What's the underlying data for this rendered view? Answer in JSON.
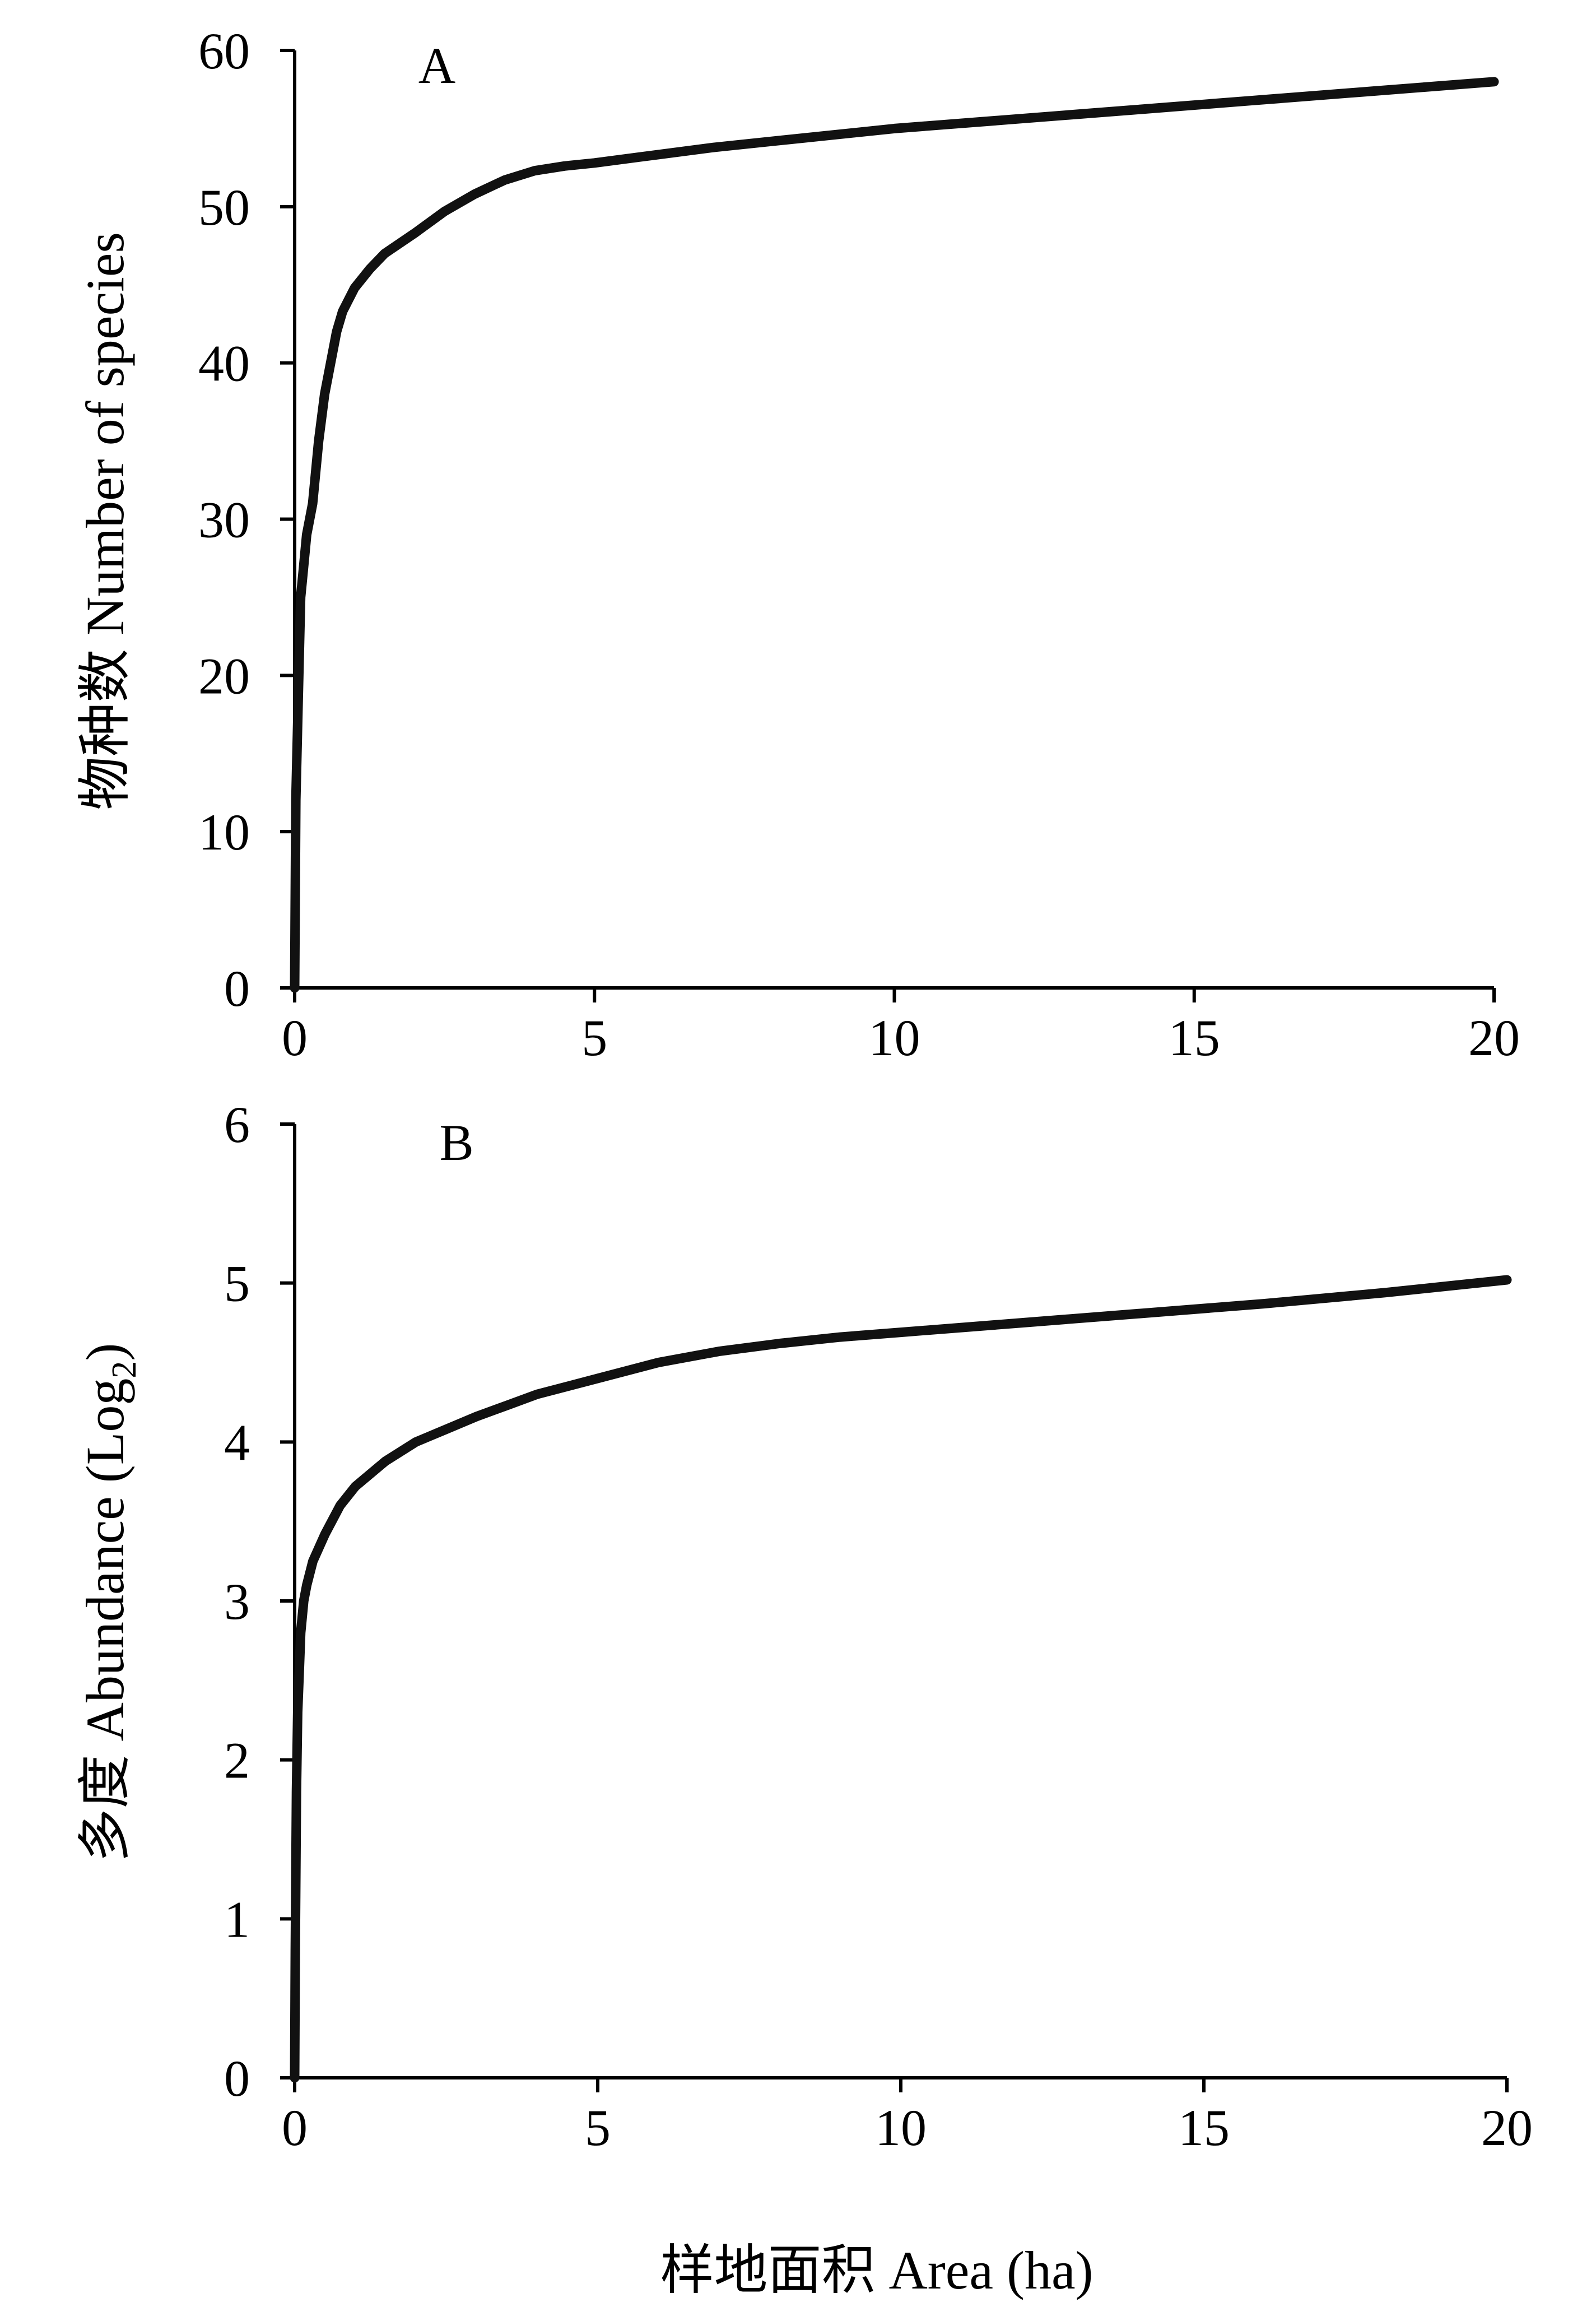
{
  "chart_data": [
    {
      "type": "line",
      "panel_label": "A",
      "xlabel": "",
      "ylabel": "物种数  Number of species",
      "xlim": [
        0,
        20
      ],
      "ylim": [
        0,
        60
      ],
      "xticks": [
        0,
        5,
        10,
        15,
        20
      ],
      "yticks": [
        0,
        10,
        20,
        30,
        40,
        50,
        60
      ],
      "grid": false,
      "line_color": "#111111",
      "series": [
        {
          "x": [
            0,
            0.02,
            0.05,
            0.1,
            0.15,
            0.2,
            0.3,
            0.4,
            0.5,
            0.6,
            0.7,
            0.8,
            1.0,
            1.25,
            1.5,
            2.0,
            2.5,
            3.0,
            3.5,
            4.0,
            4.5,
            5.0,
            6.0,
            7.0,
            8.0,
            9.0,
            10.0,
            12.0,
            14.0,
            16.0,
            18.0,
            20.0
          ],
          "y": [
            0,
            12,
            17,
            25,
            27,
            29,
            31,
            35,
            38,
            40,
            42,
            43.3,
            44.8,
            46.0,
            47.0,
            48.3,
            49.7,
            50.8,
            51.7,
            52.3,
            52.6,
            52.8,
            53.3,
            53.8,
            54.2,
            54.6,
            55.0,
            55.6,
            56.2,
            56.8,
            57.4,
            58.0
          ]
        }
      ]
    },
    {
      "type": "line",
      "panel_label": "B",
      "xlabel": "样地面积  Area (ha)",
      "ylabel": "多度  Abundance (Log",
      "ylabel_sub": "2",
      "ylabel_end": ")",
      "xlim": [
        0,
        20
      ],
      "ylim": [
        0,
        6
      ],
      "xticks": [
        0,
        5,
        10,
        15,
        20
      ],
      "yticks": [
        0,
        1,
        2,
        3,
        4,
        5,
        6
      ],
      "grid": false,
      "line_color": "#111111",
      "series": [
        {
          "x": [
            0,
            0.01,
            0.03,
            0.05,
            0.08,
            0.1,
            0.15,
            0.2,
            0.3,
            0.5,
            0.75,
            1.0,
            1.5,
            2.0,
            2.5,
            3.0,
            3.5,
            4.0,
            5.0,
            6.0,
            7.0,
            8.0,
            9.0,
            10.0,
            12.0,
            14.0,
            16.0,
            18.0,
            20.0
          ],
          "y": [
            0,
            0.8,
            1.8,
            2.3,
            2.6,
            2.8,
            3.0,
            3.1,
            3.25,
            3.42,
            3.6,
            3.72,
            3.88,
            4.0,
            4.08,
            4.16,
            4.23,
            4.3,
            4.4,
            4.5,
            4.57,
            4.62,
            4.66,
            4.69,
            4.75,
            4.81,
            4.87,
            4.94,
            5.02
          ]
        }
      ]
    }
  ]
}
